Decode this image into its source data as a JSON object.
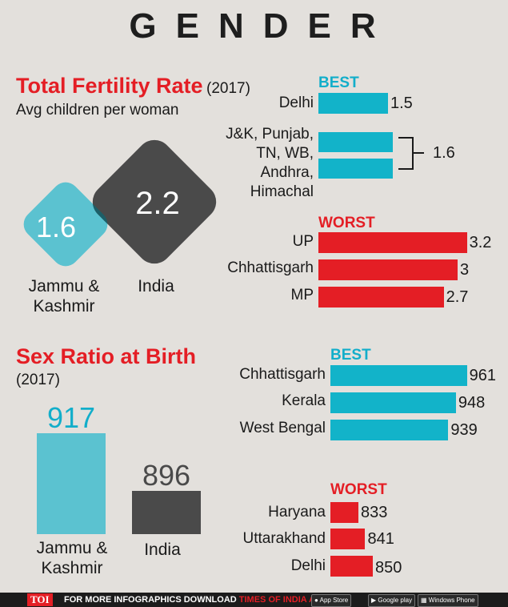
{
  "title": "GENDER",
  "tfr": {
    "title": "Total Fertility Rate",
    "year": "(2017)",
    "subtitle": "Avg children per woman",
    "jk_value": "1.6",
    "india_value": "2.2",
    "jk_label_1": "Jammu &",
    "jk_label_2": "Kashmir",
    "india_label": "India",
    "best_label": "BEST",
    "worst_label": "WORST",
    "bracket_value": "1.6",
    "colors": {
      "teal": "#12b3c9",
      "circle_teal": "#5bc2d0",
      "dark": "#4a4a4a",
      "red": "#e41e25"
    }
  },
  "srb": {
    "title": "Sex Ratio at Birth",
    "year": "(2017)",
    "jk_label_1": "Jammu &",
    "jk_label_2": "Kashmir",
    "india_label": "India",
    "best_label": "BEST",
    "worst_label": "WORST",
    "colors": {
      "teal": "#5bc2d0",
      "dark": "#4a4a4a"
    }
  },
  "chart_data": [
    {
      "type": "bar",
      "title": "Total Fertility Rate (2017) - Best",
      "categories": [
        "Delhi",
        "J&K, Punjab, TN, WB, Andhra, Himachal"
      ],
      "values": [
        1.5,
        1.6
      ],
      "labels": [
        "Delhi",
        "J&K, Punjab,",
        "TN, WB,",
        "Andhra,",
        "Himachal"
      ],
      "value_labels": [
        "1.5"
      ]
    },
    {
      "type": "bar",
      "title": "Total Fertility Rate (2017) - Worst",
      "categories": [
        "UP",
        "Chhattisgarh",
        "MP"
      ],
      "values": [
        3.2,
        3,
        2.7
      ],
      "value_labels": [
        "3.2",
        "3",
        "2.7"
      ]
    },
    {
      "type": "bar",
      "title": "Sex Ratio at Birth (2017) - J&K vs India",
      "categories": [
        "Jammu & Kashmir",
        "India"
      ],
      "values": [
        917,
        896
      ],
      "value_labels": [
        "917",
        "896"
      ]
    },
    {
      "type": "bar",
      "title": "Sex Ratio at Birth (2017) - Best",
      "categories": [
        "Chhattisgarh",
        "Kerala",
        "West Bengal"
      ],
      "values": [
        961,
        948,
        939
      ],
      "value_labels": [
        "961",
        "948",
        "939"
      ]
    },
    {
      "type": "bar",
      "title": "Sex Ratio at Birth (2017) - Worst",
      "categories": [
        "Haryana",
        "Uttarakhand",
        "Delhi"
      ],
      "values": [
        833,
        841,
        850
      ],
      "value_labels": [
        "833",
        "841",
        "850"
      ]
    }
  ],
  "footer": {
    "brand": "TOI",
    "text_1": "FOR MORE INFOGRAPHICS DOWNLOAD",
    "text_2": "TIMES OF INDIA APP",
    "app_store": "App Store",
    "app_store_sub": "Available on the",
    "google_play": "Google play",
    "windows": "Windows Phone"
  }
}
